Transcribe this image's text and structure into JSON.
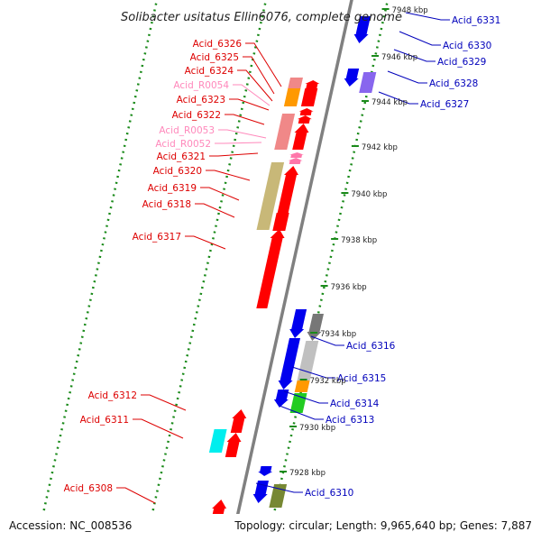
{
  "title": "Solibacter usitatus Ellin6076, complete genome",
  "footer": {
    "accession": "Accession: NC_008536",
    "topology": "Topology: circular; Length: 9,965,640 bp; Genes: 7,887"
  },
  "colors": {
    "backbone": "#808080",
    "tick_dots": "#1a8a1a",
    "minus_strand_gene": "#ff0000",
    "minus_strand_label": "#dd0000",
    "rna_label": "#ff88bb",
    "plus_strand_gene": "#0000ee",
    "plus_strand_label": "#0000bb"
  },
  "kbp_marks": [
    "7928 kbp",
    "7930 kbp",
    "7932 kbp",
    "7934 kbp",
    "7936 kbp",
    "7938 kbp",
    "7940 kbp",
    "7942 kbp",
    "7944 kbp",
    "7946 kbp",
    "7948 kbp"
  ],
  "labels_left": [
    {
      "text": "Acid_6326",
      "kind": "gene"
    },
    {
      "text": "Acid_6325",
      "kind": "gene"
    },
    {
      "text": "Acid_6324",
      "kind": "gene"
    },
    {
      "text": "Acid_R0054",
      "kind": "rna"
    },
    {
      "text": "Acid_6323",
      "kind": "gene"
    },
    {
      "text": "Acid_6322",
      "kind": "gene"
    },
    {
      "text": "Acid_R0053",
      "kind": "rna"
    },
    {
      "text": "Acid_R0052",
      "kind": "rna"
    },
    {
      "text": "Acid_6321",
      "kind": "gene"
    },
    {
      "text": "Acid_6320",
      "kind": "gene"
    },
    {
      "text": "Acid_6319",
      "kind": "gene"
    },
    {
      "text": "Acid_6318",
      "kind": "gene"
    },
    {
      "text": "Acid_6317",
      "kind": "gene"
    },
    {
      "text": "Acid_6312",
      "kind": "gene"
    },
    {
      "text": "Acid_6311",
      "kind": "gene"
    },
    {
      "text": "Acid_6308",
      "kind": "gene"
    }
  ],
  "labels_right": [
    {
      "text": "Acid_6331"
    },
    {
      "text": "Acid_6330"
    },
    {
      "text": "Acid_6329"
    },
    {
      "text": "Acid_6328"
    },
    {
      "text": "Acid_6327"
    },
    {
      "text": "Acid_6316"
    },
    {
      "text": "Acid_6315"
    },
    {
      "text": "Acid_6314"
    },
    {
      "text": "Acid_6313"
    },
    {
      "text": "Acid_6310"
    }
  ]
}
